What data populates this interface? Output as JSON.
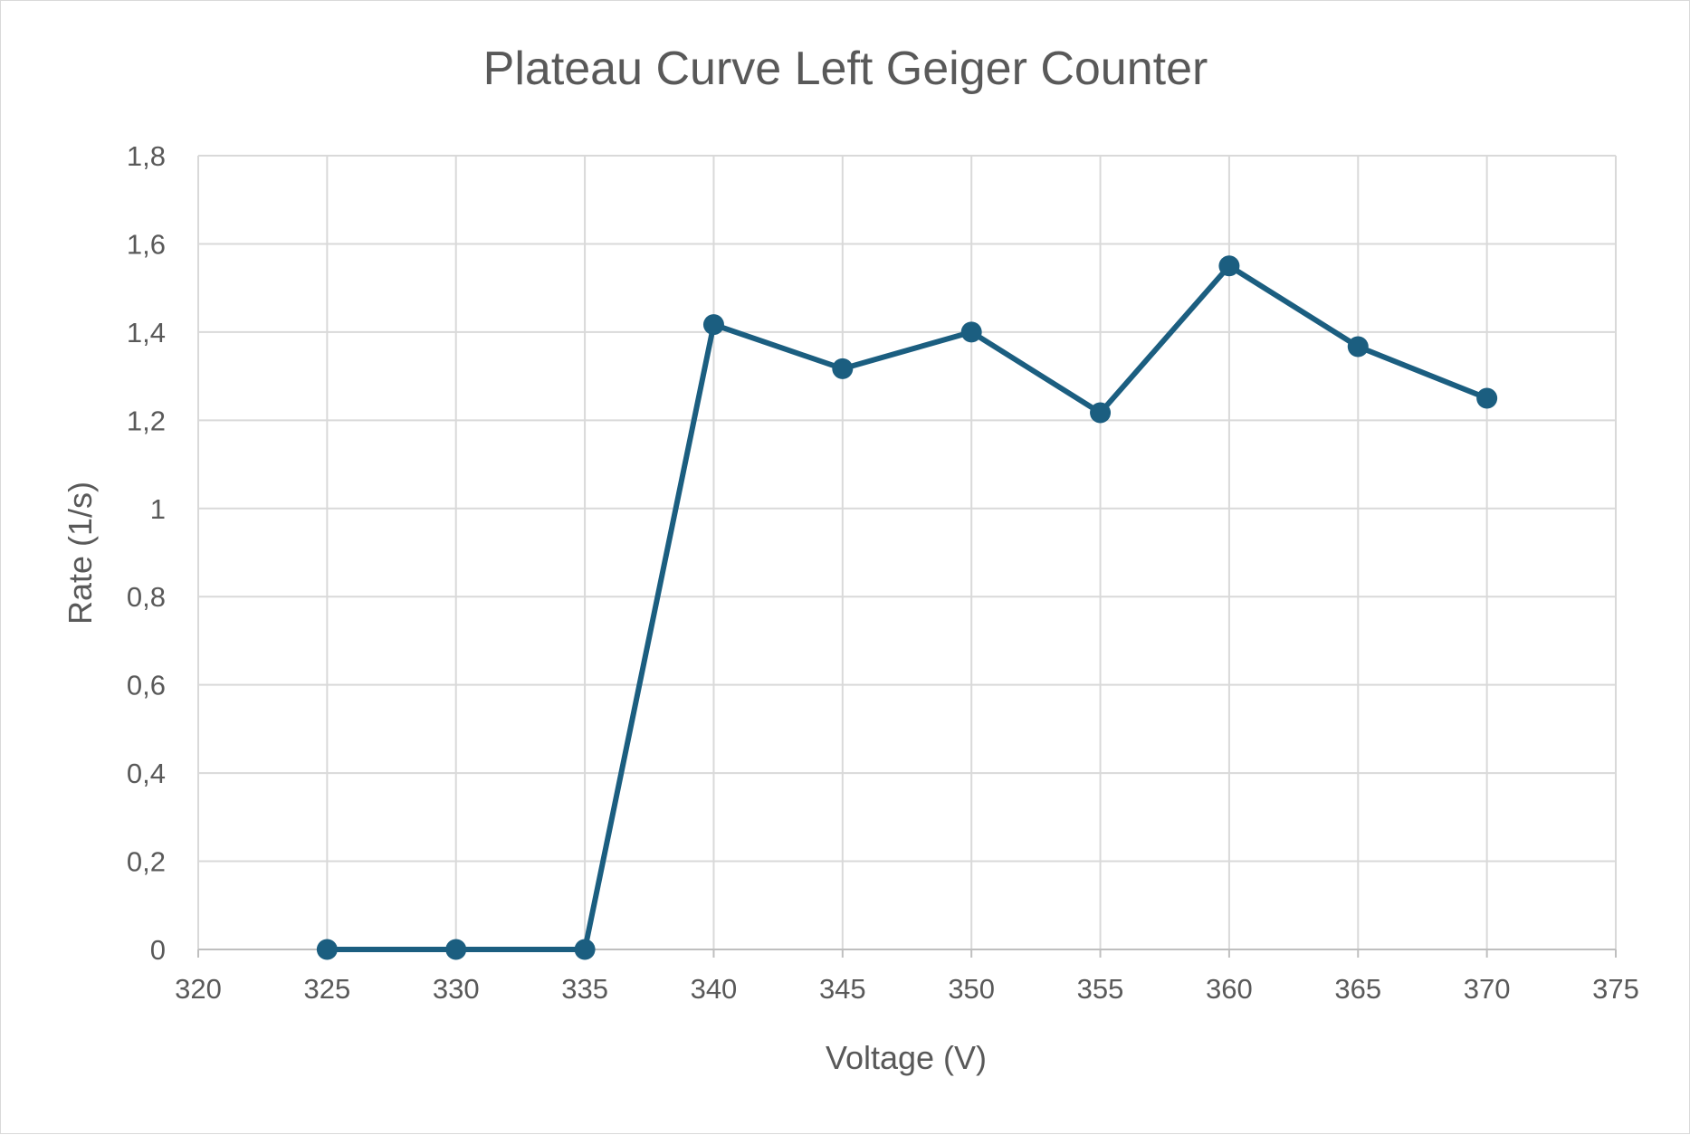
{
  "chart_data": {
    "type": "scatter",
    "title": "Plateau Curve Left Geiger Counter",
    "xlabel": "Voltage (V)",
    "ylabel": "Rate (1/s)",
    "xlim": [
      320,
      375
    ],
    "ylim": [
      0,
      1.8
    ],
    "x_ticks": [
      320,
      325,
      330,
      335,
      340,
      345,
      350,
      355,
      360,
      365,
      370,
      375
    ],
    "x_tick_labels": [
      "320",
      "325",
      "330",
      "335",
      "340",
      "345",
      "350",
      "355",
      "360",
      "365",
      "370",
      "375"
    ],
    "y_ticks": [
      0,
      0.2,
      0.4,
      0.6,
      0.8,
      1.0,
      1.2,
      1.4,
      1.6,
      1.8
    ],
    "y_tick_labels": [
      "0",
      "0,2",
      "0,4",
      "0,6",
      "0,8",
      "1",
      "1,2",
      "1,4",
      "1,6",
      "1,8"
    ],
    "grid": true,
    "legend": "none",
    "series": [
      {
        "name": "Rate",
        "x": [
          325,
          330,
          335,
          340,
          345,
          350,
          355,
          360,
          365,
          370
        ],
        "y": [
          0,
          0,
          0,
          1.417,
          1.317,
          1.4,
          1.217,
          1.55,
          1.367,
          1.25
        ],
        "color": "#1b5e80",
        "marker": "circle",
        "line": "straight"
      }
    ]
  }
}
